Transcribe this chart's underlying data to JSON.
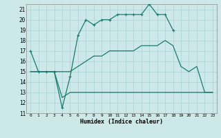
{
  "xlabel": "Humidex (Indice chaleur)",
  "x": [
    0,
    1,
    2,
    3,
    4,
    5,
    6,
    7,
    8,
    9,
    10,
    11,
    12,
    13,
    14,
    15,
    16,
    17,
    18,
    19,
    20,
    21,
    22,
    23
  ],
  "line1": [
    17.0,
    15.0,
    15.0,
    15.0,
    11.5,
    14.5,
    18.5,
    20.0,
    19.5,
    20.0,
    20.0,
    20.5,
    20.5,
    20.5,
    20.5,
    21.5,
    20.5,
    20.5,
    19.0,
    null,
    null,
    null,
    null,
    null
  ],
  "line2": [
    15.0,
    15.0,
    15.0,
    15.0,
    15.0,
    15.0,
    15.5,
    16.0,
    16.5,
    16.5,
    17.0,
    17.0,
    17.0,
    17.0,
    17.5,
    17.5,
    17.5,
    18.0,
    17.5,
    15.5,
    15.0,
    15.5,
    13.0,
    13.0
  ],
  "line3": [
    15.0,
    15.0,
    15.0,
    15.0,
    12.5,
    13.0,
    13.0,
    13.0,
    13.0,
    13.0,
    13.0,
    13.0,
    13.0,
    13.0,
    13.0,
    13.0,
    13.0,
    13.0,
    13.0,
    13.0,
    13.0,
    13.0,
    13.0,
    13.0
  ],
  "ylim": [
    11,
    21.5
  ],
  "xlim": [
    -0.5,
    23.5
  ],
  "yticks": [
    11,
    12,
    13,
    14,
    15,
    16,
    17,
    18,
    19,
    20,
    21
  ],
  "xticks": [
    0,
    1,
    2,
    3,
    4,
    5,
    6,
    7,
    8,
    9,
    10,
    11,
    12,
    13,
    14,
    15,
    16,
    17,
    18,
    19,
    20,
    21,
    22,
    23
  ],
  "line_color": "#1a7a6e",
  "bg_color": "#cce8e8",
  "grid_color": "#aad0d0",
  "spine_color": "#888888"
}
